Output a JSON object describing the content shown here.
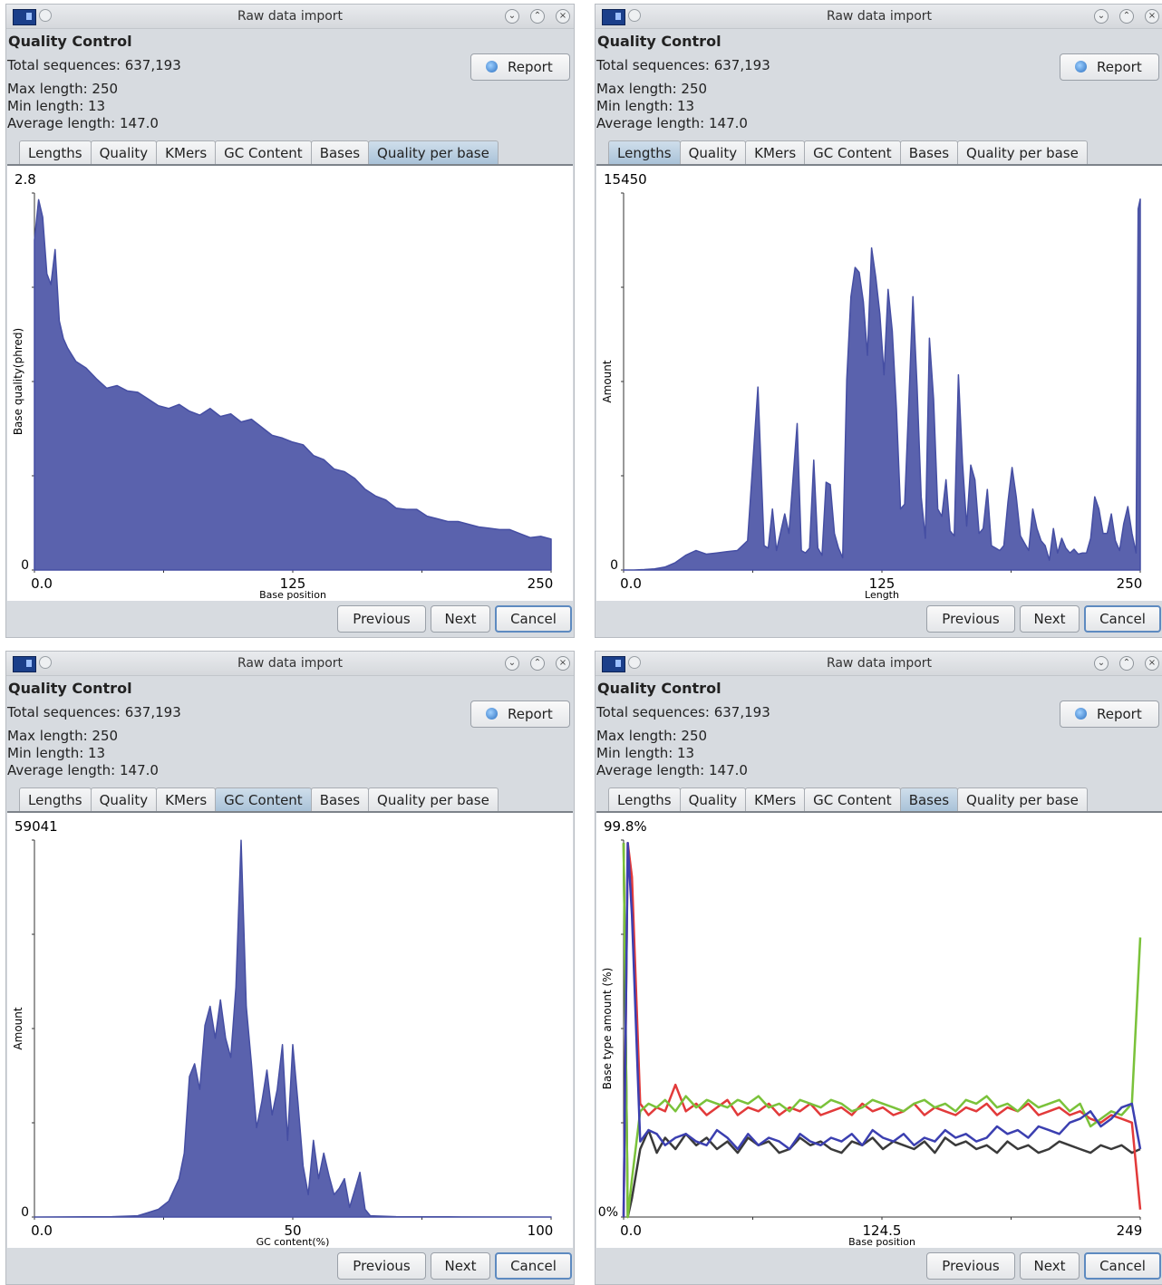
{
  "windows": [
    {
      "title": "Raw data import",
      "heading": "Quality Control",
      "stats": {
        "total": "Total sequences: 637,193",
        "max": "Max length: 250",
        "min": "Min length: 13",
        "avg": "Average length: 147.0"
      },
      "report_label": "Report",
      "tabs": [
        "Lengths",
        "Quality",
        "KMers",
        "GC Content",
        "Bases",
        "Quality per base"
      ],
      "active_tab": 5,
      "buttons": {
        "previous": "Previous",
        "next": "Next",
        "cancel": "Cancel"
      }
    },
    {
      "title": "Raw data import",
      "heading": "Quality Control",
      "stats": {
        "total": "Total sequences: 637,193",
        "max": "Max length: 250",
        "min": "Min length: 13",
        "avg": "Average length: 147.0"
      },
      "report_label": "Report",
      "tabs": [
        "Lengths",
        "Quality",
        "KMers",
        "GC Content",
        "Bases",
        "Quality per base"
      ],
      "active_tab": 0,
      "buttons": {
        "previous": "Previous",
        "next": "Next",
        "cancel": "Cancel"
      }
    },
    {
      "title": "Raw data import",
      "heading": "Quality Control",
      "stats": {
        "total": "Total sequences: 637,193",
        "max": "Max length: 250",
        "min": "Min length: 13",
        "avg": "Average length: 147.0"
      },
      "report_label": "Report",
      "tabs": [
        "Lengths",
        "Quality",
        "KMers",
        "GC Content",
        "Bases",
        "Quality per base"
      ],
      "active_tab": 3,
      "buttons": {
        "previous": "Previous",
        "next": "Next",
        "cancel": "Cancel"
      }
    },
    {
      "title": "Raw data import",
      "heading": "Quality Control",
      "stats": {
        "total": "Total sequences: 637,193",
        "max": "Max length: 250",
        "min": "Min length: 13",
        "avg": "Average length: 147.0"
      },
      "report_label": "Report",
      "tabs": [
        "Lengths",
        "Quality",
        "KMers",
        "GC Content",
        "Bases",
        "Quality per base"
      ],
      "active_tab": 4,
      "buttons": {
        "previous": "Previous",
        "next": "Next",
        "cancel": "Cancel"
      }
    }
  ],
  "colors": {
    "fill": "#5a62ad",
    "stroke": "#454ea3",
    "grey": "#3a3a3a",
    "red": "#e23a3a",
    "green": "#7ac23a",
    "blue": "#3b3fb0"
  },
  "chart_data": [
    {
      "type": "area",
      "xlabel": "Base position",
      "ylabel": "Base quality(phred)",
      "ymax_label": "2.8",
      "ymin_label": "0",
      "ylim": [
        0,
        2.8
      ],
      "xlim": [
        0,
        250
      ],
      "x_ticks": [
        "0.0",
        "125",
        "250"
      ],
      "x": [
        0,
        2,
        4,
        6,
        8,
        10,
        12,
        14,
        16,
        18,
        20,
        25,
        30,
        35,
        40,
        45,
        50,
        55,
        60,
        65,
        70,
        75,
        80,
        85,
        90,
        95,
        100,
        105,
        110,
        115,
        120,
        125,
        130,
        135,
        140,
        145,
        150,
        155,
        160,
        165,
        170,
        175,
        180,
        185,
        190,
        195,
        200,
        205,
        210,
        215,
        220,
        225,
        230,
        235,
        240,
        245,
        250
      ],
      "values": [
        2.45,
        2.75,
        2.62,
        2.2,
        2.12,
        2.38,
        1.85,
        1.72,
        1.65,
        1.6,
        1.55,
        1.5,
        1.42,
        1.35,
        1.37,
        1.33,
        1.32,
        1.27,
        1.22,
        1.2,
        1.23,
        1.18,
        1.15,
        1.2,
        1.14,
        1.16,
        1.1,
        1.12,
        1.06,
        1.0,
        0.98,
        0.95,
        0.93,
        0.85,
        0.82,
        0.75,
        0.73,
        0.68,
        0.6,
        0.55,
        0.52,
        0.46,
        0.45,
        0.45,
        0.4,
        0.38,
        0.36,
        0.36,
        0.34,
        0.32,
        0.31,
        0.3,
        0.3,
        0.27,
        0.24,
        0.25,
        0.23
      ]
    },
    {
      "type": "area",
      "xlabel": "Length",
      "ylabel": "Amount",
      "ymax_label": "15450",
      "ymin_label": "0",
      "ylim": [
        0,
        15450
      ],
      "xlim": [
        0,
        250
      ],
      "x_ticks": [
        "0.0",
        "125",
        "250"
      ],
      "x": [
        0,
        5,
        10,
        15,
        20,
        25,
        30,
        35,
        40,
        45,
        50,
        55,
        60,
        65,
        68,
        70,
        72,
        74,
        78,
        80,
        84,
        86,
        88,
        90,
        92,
        94,
        96,
        98,
        100,
        102,
        104,
        106,
        108,
        110,
        112,
        114,
        116,
        118,
        120,
        122,
        124,
        126,
        128,
        130,
        132,
        134,
        136,
        138,
        140,
        142,
        144,
        146,
        148,
        150,
        152,
        154,
        156,
        158,
        160,
        162,
        164,
        166,
        168,
        170,
        172,
        174,
        176,
        178,
        180,
        182,
        184,
        186,
        188,
        190,
        192,
        194,
        196,
        198,
        200,
        202,
        204,
        206,
        208,
        210,
        212,
        214,
        216,
        218,
        220,
        222,
        224,
        226,
        228,
        230,
        232,
        234,
        236,
        238,
        240,
        242,
        244,
        246,
        248,
        249,
        250
      ],
      "values": [
        0,
        0,
        20,
        50,
        120,
        300,
        600,
        800,
        650,
        700,
        750,
        800,
        1200,
        7500,
        1000,
        900,
        2500,
        800,
        2300,
        1500,
        6000,
        800,
        700,
        900,
        4500,
        900,
        600,
        3600,
        3500,
        1500,
        900,
        500,
        7800,
        11200,
        12400,
        12200,
        11000,
        8800,
        13200,
        12000,
        10500,
        8000,
        11500,
        9800,
        6600,
        2500,
        2700,
        6800,
        11200,
        7500,
        3000,
        1300,
        9500,
        7000,
        2500,
        2200,
        3700,
        1600,
        1400,
        8000,
        4400,
        1800,
        4300,
        3700,
        1500,
        1700,
        3300,
        1000,
        900,
        800,
        1000,
        2800,
        4200,
        3000,
        1400,
        1100,
        800,
        2500,
        1700,
        1200,
        1000,
        400,
        1700,
        700,
        1300,
        900,
        700,
        850,
        650,
        700,
        700,
        1300,
        3000,
        2500,
        1500,
        1500,
        2300,
        1200,
        800,
        1900,
        2600,
        1500,
        700,
        14800,
        15200
      ]
    },
    {
      "type": "area",
      "xlabel": "GC content(%)",
      "ylabel": "Amount",
      "ymax_label": "59041",
      "ymin_label": "0",
      "ylim": [
        0,
        59041
      ],
      "xlim": [
        0,
        100
      ],
      "x_ticks": [
        "0.0",
        "50",
        "100"
      ],
      "x": [
        0,
        15,
        20,
        22,
        24,
        26,
        28,
        29,
        30,
        31,
        32,
        33,
        34,
        35,
        36,
        37,
        38,
        39,
        40,
        41,
        42,
        43,
        44,
        45,
        46,
        47,
        48,
        49,
        50,
        51,
        52,
        53,
        54,
        55,
        56,
        57,
        58,
        59,
        60,
        61,
        62,
        63,
        64,
        65,
        70,
        80,
        100
      ],
      "values": [
        0,
        50,
        200,
        700,
        1200,
        2500,
        6000,
        10000,
        22000,
        24000,
        20000,
        30000,
        33000,
        28000,
        34000,
        28000,
        25000,
        36000,
        59000,
        33000,
        24000,
        14000,
        18000,
        23000,
        16000,
        20000,
        27000,
        12000,
        27000,
        18000,
        8000,
        3500,
        12000,
        6000,
        10000,
        6500,
        3500,
        4500,
        6000,
        1500,
        4200,
        7000,
        1200,
        200,
        50,
        30,
        0
      ]
    },
    {
      "type": "line",
      "xlabel": "Base position",
      "ylabel": "Base type amount (%)",
      "ymax_label": "99.8%",
      "ymin_label": "0%",
      "ylim": [
        0,
        99.8
      ],
      "xlim": [
        0,
        249
      ],
      "x_ticks": [
        "0.0",
        "124.5",
        "249"
      ],
      "x": [
        0,
        2,
        4,
        8,
        12,
        16,
        20,
        25,
        30,
        35,
        40,
        45,
        50,
        55,
        60,
        65,
        70,
        75,
        80,
        85,
        90,
        95,
        100,
        105,
        110,
        115,
        120,
        125,
        130,
        135,
        140,
        145,
        150,
        155,
        160,
        165,
        170,
        175,
        180,
        185,
        190,
        195,
        200,
        205,
        210,
        215,
        220,
        225,
        230,
        235,
        240,
        245,
        249
      ],
      "series": [
        {
          "color": "grey",
          "values": [
            99,
            0,
            5,
            18,
            23,
            17,
            21,
            18,
            22,
            19,
            21,
            18,
            20,
            17,
            21,
            19,
            20,
            17,
            18,
            21,
            19,
            20,
            18,
            17,
            20,
            19,
            21,
            18,
            20,
            19,
            18,
            20,
            17,
            21,
            19,
            20,
            18,
            19,
            17,
            20,
            18,
            19,
            17,
            18,
            20,
            19,
            18,
            17,
            19,
            18,
            19,
            17,
            18
          ]
        },
        {
          "color": "red",
          "values": [
            0,
            99,
            90,
            30,
            27,
            29,
            28,
            35,
            28,
            30,
            27,
            29,
            31,
            27,
            29,
            28,
            30,
            27,
            29,
            28,
            30,
            27,
            28,
            29,
            27,
            30,
            28,
            29,
            27,
            28,
            30,
            27,
            29,
            28,
            27,
            29,
            28,
            30,
            27,
            29,
            28,
            30,
            27,
            28,
            29,
            27,
            28,
            26,
            25,
            27,
            26,
            25,
            2
          ]
        },
        {
          "color": "green",
          "values": [
            99,
            0,
            10,
            28,
            30,
            29,
            31,
            28,
            32,
            29,
            31,
            30,
            29,
            31,
            30,
            32,
            29,
            30,
            28,
            31,
            30,
            29,
            31,
            30,
            28,
            29,
            31,
            30,
            29,
            28,
            30,
            31,
            29,
            30,
            28,
            31,
            30,
            32,
            29,
            30,
            28,
            31,
            29,
            30,
            31,
            28,
            30,
            24,
            26,
            28,
            27,
            30,
            74
          ]
        },
        {
          "color": "blue",
          "values": [
            0,
            99,
            80,
            20,
            23,
            22,
            19,
            21,
            22,
            20,
            19,
            23,
            21,
            18,
            22,
            19,
            21,
            20,
            18,
            22,
            20,
            19,
            21,
            20,
            22,
            19,
            23,
            21,
            20,
            22,
            19,
            21,
            20,
            23,
            21,
            22,
            20,
            21,
            24,
            22,
            23,
            21,
            24,
            23,
            22,
            25,
            26,
            28,
            24,
            26,
            29,
            30,
            18
          ]
        }
      ]
    }
  ]
}
